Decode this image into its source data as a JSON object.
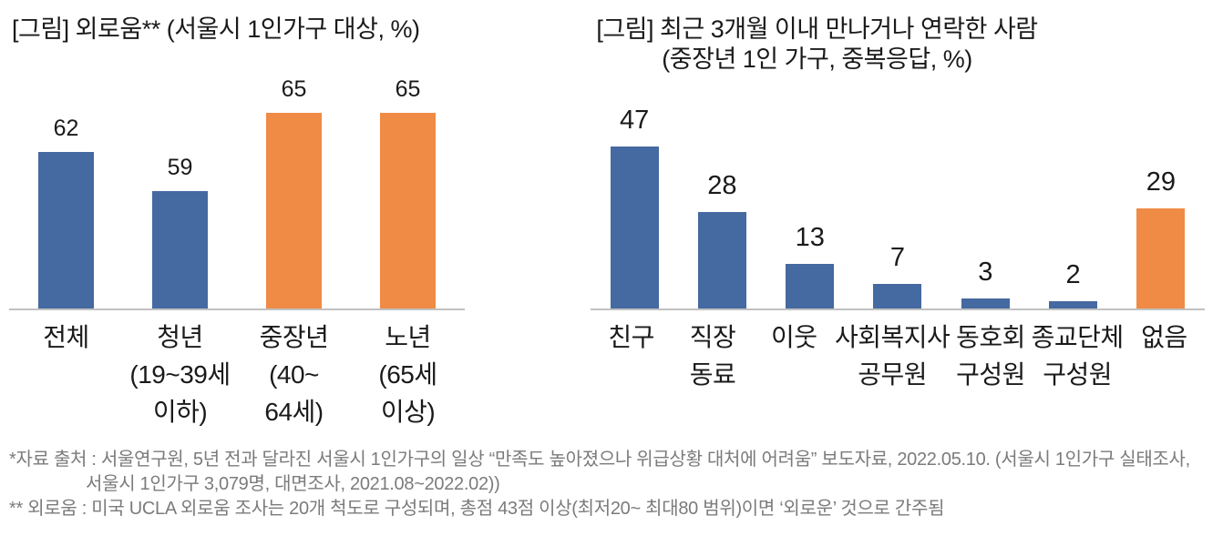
{
  "page": {
    "background": "#FFFFFF"
  },
  "colors": {
    "bar_blue": "#4569A1",
    "bar_orange": "#EF8B45",
    "axis_line": "#C1C1C1",
    "chart_text": "#1A1A1A",
    "footnote_text": "#7B7B7B"
  },
  "chart_data": [
    {
      "type": "bar",
      "title": "[그림] 외로움** (서울시 1인가구 대상, %)",
      "title_lines": [
        "[그림] 외로움** (서울시 1인가구 대상, %)"
      ],
      "categories": [
        [
          "전체"
        ],
        [
          "청년",
          "(19~39세",
          "이하)"
        ],
        [
          "중장년",
          "(40~",
          "64세)"
        ],
        [
          "노년",
          "(65세",
          "이상)"
        ]
      ],
      "values": [
        62,
        59,
        65,
        65
      ],
      "bar_colors": [
        "#4569A1",
        "#4569A1",
        "#EF8B45",
        "#EF8B45"
      ],
      "value_labels": true,
      "xlabel": "",
      "ylabel": "",
      "ylim": [
        50,
        68
      ],
      "grid": false,
      "legend": "none"
    },
    {
      "type": "bar",
      "title": "[그림] 최근 3개월 이내 만나거나 연락한 사람 (중장년 1인 가구, 중복응답, %)",
      "title_lines": [
        "[그림] 최근 3개월 이내 만나거나 연락한 사람",
        "(중장년 1인 가구, 중복응답, %)"
      ],
      "categories": [
        [
          "친구"
        ],
        [
          "직장",
          "동료"
        ],
        [
          "이웃"
        ],
        [
          "사회복지사",
          "공무원"
        ],
        [
          "동호회",
          "구성원"
        ],
        [
          "종교단체",
          "구성원"
        ],
        [
          "없음"
        ]
      ],
      "values": [
        47,
        28,
        13,
        7,
        3,
        2,
        29
      ],
      "bar_colors": [
        "#4569A1",
        "#4569A1",
        "#4569A1",
        "#4569A1",
        "#4569A1",
        "#4569A1",
        "#EF8B45"
      ],
      "value_labels": true,
      "xlabel": "",
      "ylabel": "",
      "ylim": [
        0,
        68
      ],
      "grid": false,
      "legend": "none"
    }
  ],
  "footnotes": {
    "lines": [
      "*자료 출처 : 서울연구원, 5년 전과 달라진 서울시 1인가구의 일상 “만족도 높아졌으나 위급상황 대처에 어려움” 보도자료, 2022.05.10. (서울시 1인가구 실태조사,",
      "서울시 1인가구 3,079명, 대면조사, 2021.08~2022.02))",
      "** 외로움 : 미국 UCLA 외로움 조사는 20개 척도로 구성되며, 총점 43점 이상(최저20~ 최대80 범위)이면 ‘외로운’ 것으로 간주됨"
    ]
  }
}
